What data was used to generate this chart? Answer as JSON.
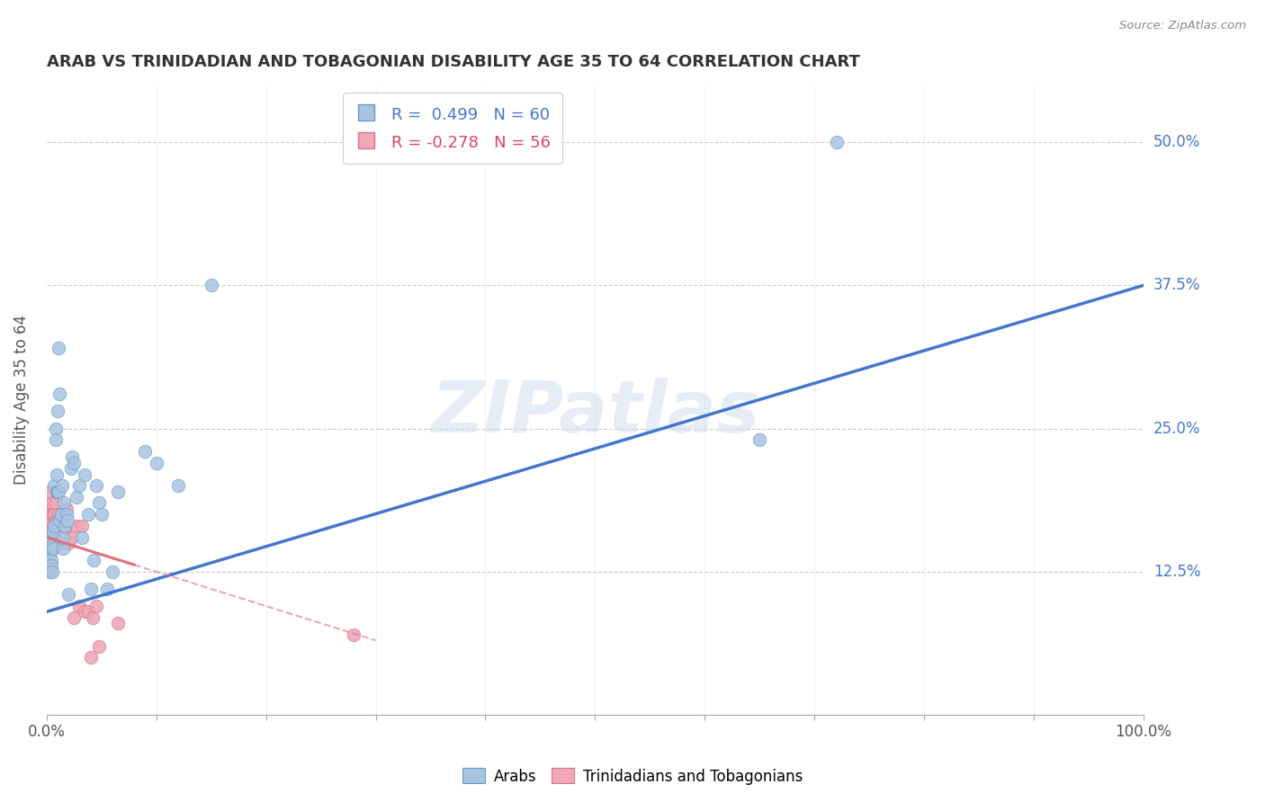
{
  "title": "ARAB VS TRINIDADIAN AND TOBAGONIAN DISABILITY AGE 35 TO 64 CORRELATION CHART",
  "source": "Source: ZipAtlas.com",
  "ylabel": "Disability Age 35 to 64",
  "yticks": [
    "12.5%",
    "25.0%",
    "37.5%",
    "50.0%"
  ],
  "ytick_vals": [
    0.125,
    0.25,
    0.375,
    0.5
  ],
  "xlim": [
    0.0,
    1.0
  ],
  "ylim": [
    0.0,
    0.55
  ],
  "arab_R": 0.499,
  "arab_N": 60,
  "trint_R": -0.278,
  "trint_N": 56,
  "arab_color": "#aac4e0",
  "trint_color": "#f0a8b8",
  "arab_line_color": "#4477cc",
  "trint_line_color": "#e07080",
  "watermark": "ZIPatlas",
  "legend_arab": "Arabs",
  "legend_trint": "Trinidadians and Tobagonians",
  "arab_line_x0": 0.0,
  "arab_line_y0": 0.09,
  "arab_line_x1": 1.0,
  "arab_line_y1": 0.375,
  "trint_line_x0": 0.0,
  "trint_line_y0": 0.155,
  "trint_line_x1": 0.3,
  "trint_line_y1": 0.065,
  "arab_x": [
    0.001,
    0.001,
    0.002,
    0.002,
    0.002,
    0.003,
    0.003,
    0.003,
    0.003,
    0.004,
    0.004,
    0.004,
    0.005,
    0.005,
    0.005,
    0.006,
    0.006,
    0.007,
    0.007,
    0.008,
    0.008,
    0.009,
    0.009,
    0.01,
    0.01,
    0.011,
    0.011,
    0.012,
    0.012,
    0.013,
    0.014,
    0.015,
    0.015,
    0.016,
    0.017,
    0.018,
    0.019,
    0.02,
    0.022,
    0.023,
    0.025,
    0.027,
    0.03,
    0.032,
    0.035,
    0.038,
    0.04,
    0.043,
    0.045,
    0.048,
    0.05,
    0.055,
    0.06,
    0.065,
    0.09,
    0.1,
    0.12,
    0.15,
    0.65,
    0.72
  ],
  "arab_y": [
    0.13,
    0.145,
    0.14,
    0.155,
    0.135,
    0.15,
    0.14,
    0.13,
    0.125,
    0.145,
    0.135,
    0.13,
    0.155,
    0.148,
    0.125,
    0.16,
    0.145,
    0.2,
    0.165,
    0.25,
    0.24,
    0.21,
    0.195,
    0.195,
    0.265,
    0.195,
    0.32,
    0.28,
    0.17,
    0.175,
    0.2,
    0.145,
    0.155,
    0.185,
    0.165,
    0.175,
    0.17,
    0.105,
    0.215,
    0.225,
    0.22,
    0.19,
    0.2,
    0.155,
    0.21,
    0.175,
    0.11,
    0.135,
    0.2,
    0.185,
    0.175,
    0.11,
    0.125,
    0.195,
    0.23,
    0.22,
    0.2,
    0.375,
    0.24,
    0.5
  ],
  "trint_x": [
    0.001,
    0.001,
    0.001,
    0.002,
    0.002,
    0.002,
    0.002,
    0.003,
    0.003,
    0.003,
    0.003,
    0.004,
    0.004,
    0.004,
    0.004,
    0.005,
    0.005,
    0.005,
    0.005,
    0.006,
    0.006,
    0.006,
    0.007,
    0.007,
    0.007,
    0.008,
    0.008,
    0.009,
    0.009,
    0.01,
    0.01,
    0.011,
    0.011,
    0.012,
    0.012,
    0.013,
    0.014,
    0.015,
    0.016,
    0.017,
    0.018,
    0.019,
    0.02,
    0.022,
    0.025,
    0.028,
    0.03,
    0.032,
    0.035,
    0.038,
    0.04,
    0.042,
    0.045,
    0.048,
    0.065,
    0.28
  ],
  "trint_y": [
    0.16,
    0.17,
    0.18,
    0.175,
    0.185,
    0.165,
    0.175,
    0.195,
    0.18,
    0.17,
    0.16,
    0.175,
    0.165,
    0.155,
    0.175,
    0.185,
    0.17,
    0.16,
    0.155,
    0.175,
    0.165,
    0.145,
    0.175,
    0.16,
    0.15,
    0.185,
    0.17,
    0.16,
    0.155,
    0.17,
    0.16,
    0.165,
    0.175,
    0.165,
    0.17,
    0.175,
    0.15,
    0.175,
    0.165,
    0.16,
    0.18,
    0.155,
    0.15,
    0.155,
    0.085,
    0.165,
    0.095,
    0.165,
    0.09,
    0.09,
    0.05,
    0.085,
    0.095,
    0.06,
    0.08,
    0.07
  ]
}
